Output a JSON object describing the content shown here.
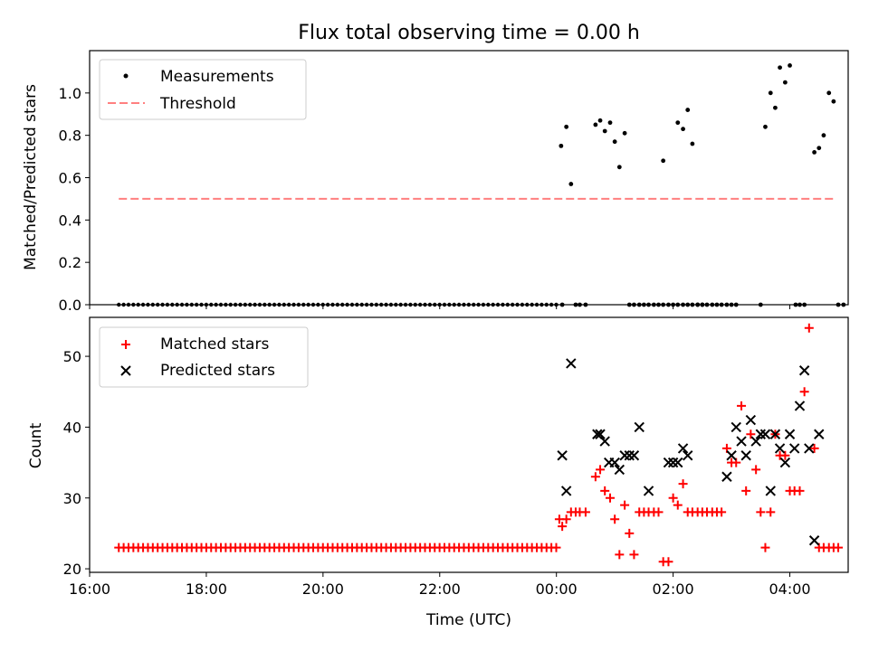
{
  "chart_data": [
    {
      "type": "scatter",
      "title": "Flux total observing time = 0.00 h",
      "xlabel": "",
      "ylabel": "Matched/Predicted stars",
      "xlim": [
        16.0,
        29.0
      ],
      "ylim": [
        0.0,
        1.2
      ],
      "yticks": [
        0.0,
        0.2,
        0.4,
        0.6,
        0.8,
        1.0
      ],
      "ytick_labels": [
        "0.0",
        "0.2",
        "0.4",
        "0.6",
        "0.8",
        "1.0"
      ],
      "legend": {
        "placement": "top-left",
        "entries": [
          "Measurements",
          "Threshold"
        ]
      },
      "threshold": {
        "y": 0.5,
        "x_start": 16.5,
        "x_end": 28.75,
        "color": "#ff7f7f"
      },
      "measurements_color": "#000000",
      "zero_series": {
        "x_start": 16.5,
        "x_end": 24.0,
        "step": 0.0833,
        "y": 0.0
      },
      "measurements": {
        "x": [
          24.1,
          24.33,
          24.4,
          24.5,
          25.25,
          25.33,
          25.42,
          25.5,
          25.58,
          25.67,
          25.75,
          25.83,
          25.92,
          26.0,
          26.08,
          26.17,
          26.25,
          26.33,
          26.42,
          26.5,
          26.58,
          26.67,
          26.75,
          26.83,
          26.92,
          27.0,
          27.08,
          27.5,
          28.1,
          28.17,
          28.25,
          28.83,
          28.92,
          24.08,
          24.17,
          24.25,
          24.67,
          24.75,
          24.83,
          24.92,
          25.0,
          25.08,
          25.17,
          25.83,
          26.08,
          26.17,
          26.25,
          26.33,
          26.42,
          26.5,
          27.58,
          27.67,
          27.75,
          27.83,
          27.92,
          28.0,
          28.42,
          28.5,
          28.58,
          28.67,
          28.75
        ],
        "y": [
          0.0,
          0.0,
          0.0,
          0.0,
          0.0,
          0.0,
          0.0,
          0.0,
          0.0,
          0.0,
          0.0,
          0.0,
          0.0,
          0.0,
          0.0,
          0.0,
          0.0,
          0.0,
          0.0,
          0.0,
          0.0,
          0.0,
          0.0,
          0.0,
          0.0,
          0.0,
          0.0,
          0.0,
          0.0,
          0.0,
          0.0,
          0.0,
          0.0,
          0.75,
          0.84,
          0.57,
          0.85,
          0.87,
          0.82,
          0.86,
          0.77,
          0.65,
          0.81,
          0.68,
          0.86,
          0.83,
          0.92,
          0.76,
          0.0,
          0.0,
          0.84,
          1.0,
          0.93,
          1.12,
          1.05,
          1.13,
          0.72,
          0.74,
          0.8,
          1.0,
          0.96
        ]
      }
    },
    {
      "type": "scatter",
      "title": "",
      "xlabel": "Time (UTC)",
      "ylabel": "Count",
      "xlim": [
        16.0,
        29.0
      ],
      "ylim": [
        19.5,
        55.5
      ],
      "yticks": [
        20,
        30,
        40,
        50
      ],
      "ytick_labels": [
        "20",
        "30",
        "40",
        "50"
      ],
      "xticks": [
        16,
        18,
        20,
        22,
        24,
        26,
        28
      ],
      "xtick_labels": [
        "16:00",
        "18:00",
        "20:00",
        "22:00",
        "00:00",
        "02:00",
        "04:00"
      ],
      "legend": {
        "placement": "top-left",
        "entries": [
          "Matched stars",
          "Predicted stars"
        ]
      },
      "matched_color": "#ff0000",
      "predicted_color": "#000000",
      "baseline_series": {
        "x_start": 16.5,
        "x_end": 24.0,
        "step": 0.0833,
        "y": 23
      },
      "matched": {
        "x": [
          24.05,
          24.1,
          24.17,
          24.25,
          24.33,
          24.4,
          24.5,
          24.67,
          24.75,
          24.83,
          24.92,
          25.0,
          25.08,
          25.17,
          25.25,
          25.33,
          25.42,
          25.5,
          25.58,
          25.67,
          25.75,
          25.83,
          25.92,
          26.0,
          26.08,
          26.17,
          26.25,
          26.33,
          26.42,
          26.5,
          26.58,
          26.67,
          26.75,
          26.83,
          26.92,
          27.0,
          27.08,
          27.17,
          27.25,
          27.33,
          27.42,
          27.5,
          27.58,
          27.67,
          27.75,
          27.83,
          27.92,
          28.0,
          28.08,
          28.17,
          28.25,
          28.33,
          28.42,
          28.5,
          28.58,
          28.67,
          28.75,
          28.83
        ],
        "y": [
          27,
          26,
          27,
          28,
          28,
          28,
          28,
          33,
          34,
          31,
          30,
          27,
          22,
          29,
          25,
          22,
          28,
          28,
          28,
          28,
          28,
          21,
          21,
          30,
          29,
          32,
          28,
          28,
          28,
          28,
          28,
          28,
          28,
          28,
          37,
          35,
          35,
          43,
          31,
          39,
          34,
          28,
          23,
          28,
          39,
          36,
          36,
          31,
          31,
          31,
          45,
          54,
          37,
          23,
          23,
          23,
          23,
          23
        ]
      },
      "predicted": {
        "x": [
          24.1,
          24.17,
          24.25,
          24.7,
          24.75,
          24.83,
          24.9,
          25.0,
          25.08,
          25.17,
          25.25,
          25.33,
          25.42,
          25.58,
          25.92,
          26.0,
          26.08,
          26.17,
          26.25,
          26.92,
          27.0,
          27.08,
          27.17,
          27.25,
          27.33,
          27.42,
          27.5,
          27.58,
          27.67,
          27.75,
          27.83,
          27.92,
          28.0,
          28.08,
          28.17,
          28.25,
          28.33,
          28.42,
          28.5
        ],
        "y": [
          36,
          31,
          49,
          39,
          39,
          38,
          35,
          35,
          34,
          36,
          36,
          36,
          40,
          31,
          35,
          35,
          35,
          37,
          36,
          33,
          36,
          40,
          38,
          36,
          41,
          38,
          39,
          39,
          31,
          39,
          37,
          35,
          39,
          37,
          43,
          48,
          37,
          24,
          39
        ]
      }
    }
  ]
}
